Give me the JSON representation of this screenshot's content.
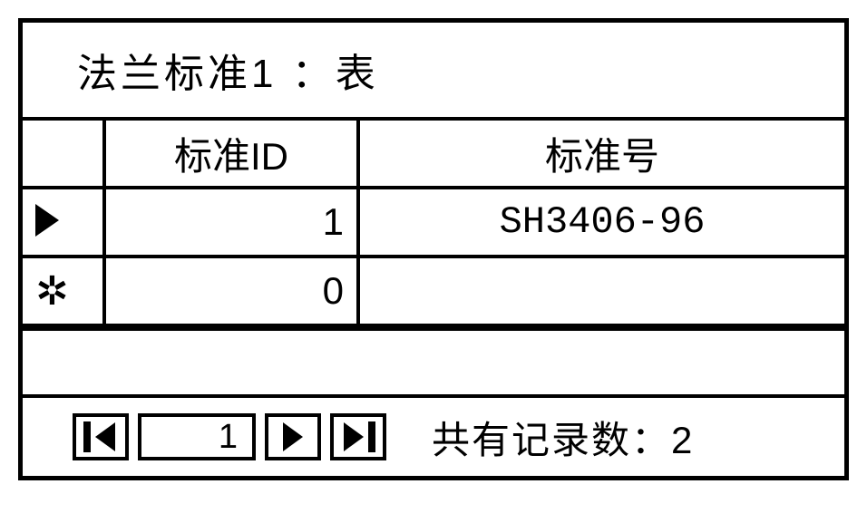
{
  "window": {
    "title": "法兰标准1 ：表"
  },
  "table": {
    "columns": [
      "",
      "标准ID",
      "标准号"
    ],
    "rows": [
      {
        "selector": "current",
        "id": "1",
        "num": "SH3406-96"
      },
      {
        "selector": "new",
        "id": "0",
        "num": ""
      }
    ]
  },
  "nav": {
    "current_record": "1",
    "count_label": "共有记录数：",
    "count_value": "2"
  },
  "style": {
    "border_color": "#000000",
    "background_color": "#ffffff",
    "font_size_main": 42
  }
}
